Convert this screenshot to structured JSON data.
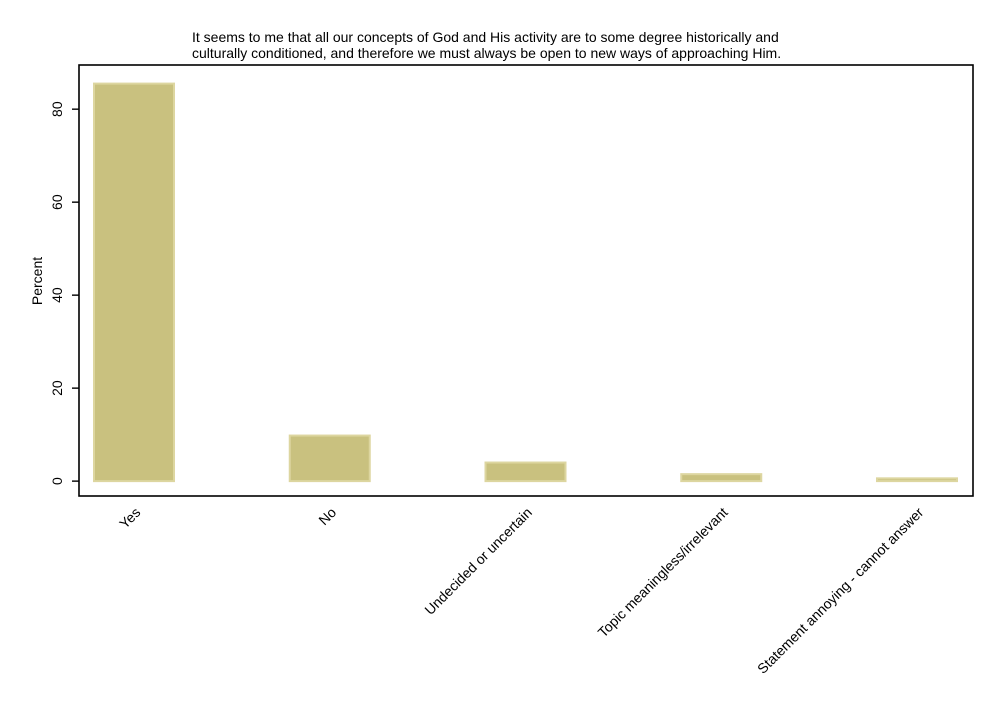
{
  "chart_data": {
    "type": "bar",
    "title_lines": [
      "It seems to me that all our concepts of God and His activity are to some degree historically and",
      "culturally conditioned, and therefore we must always be open to new ways of approaching Him."
    ],
    "xlabel": "",
    "ylabel": "Percent",
    "categories": [
      "Yes",
      "No",
      "Undecided or uncertain",
      "Topic meaningless/irrelevant",
      "Statement annoying - cannot answer"
    ],
    "values": [
      85.5,
      9.8,
      4.0,
      1.5,
      0.6
    ],
    "ylim": [
      -3.2,
      89.5
    ],
    "yticks": [
      0,
      20,
      40,
      60,
      80
    ],
    "grid": false,
    "legend": "none",
    "colors": {
      "bar_fill": "#c9c17f",
      "bar_edge": "#ddd6a0",
      "axis": "#000000"
    }
  }
}
